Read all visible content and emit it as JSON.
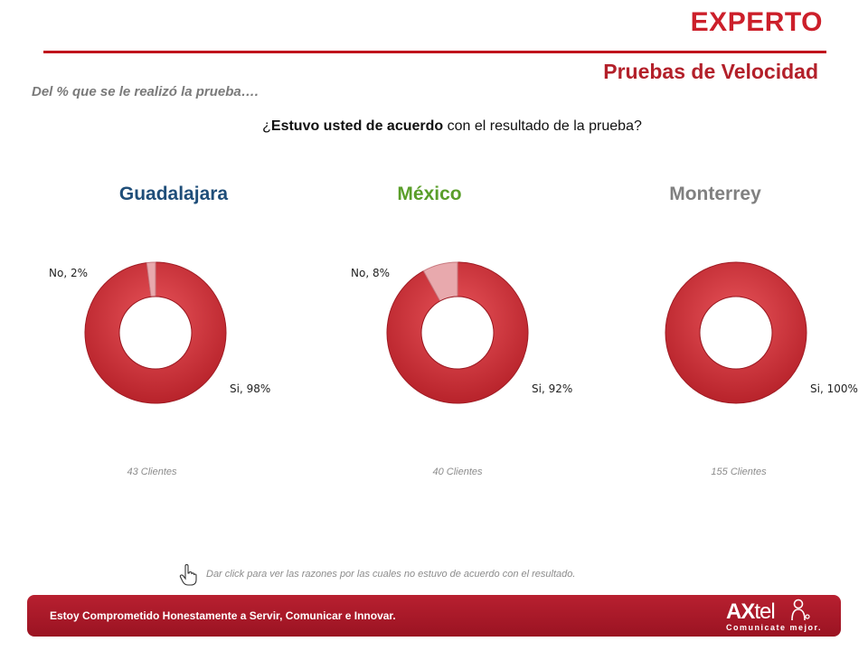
{
  "header": {
    "title": "EXPERTO",
    "subtitle": "Pruebas de Velocidad",
    "note": "Del % que se le realizó la prueba….",
    "question_prefix": "¿",
    "question_bold": "Estuvo usted de acuerdo",
    "question_rest": " con el resultado de la prueba?"
  },
  "colors": {
    "accent": "#c0141c",
    "slice_si": "#d9363e",
    "slice_no": "#e8a9ad",
    "guadalajara": "#1f4e79",
    "mexico": "#5a9e2a",
    "monterrey": "#808080"
  },
  "chart_data": [
    {
      "type": "pie",
      "title": "Guadalajara",
      "categories": [
        "Si",
        "No"
      ],
      "values": [
        98,
        2
      ],
      "labels": [
        "Si, 98%",
        "No, 2%"
      ],
      "clients": "43 Clientes"
    },
    {
      "type": "pie",
      "title": "México",
      "categories": [
        "Si",
        "No"
      ],
      "values": [
        92,
        8
      ],
      "labels": [
        "Si, 92%",
        "No, 8%"
      ],
      "clients": "40 Clientes"
    },
    {
      "type": "pie",
      "title": "Monterrey",
      "categories": [
        "Si"
      ],
      "values": [
        100
      ],
      "labels": [
        "Si, 100%"
      ],
      "clients": "155 Clientes"
    }
  ],
  "hint": "Dar click para ver las razones por las cuales no estuvo de acuerdo con el resultado.",
  "footer": {
    "slogan": "Estoy Comprometido Honestamente a Servir, Comunicar e Innovar.",
    "logo_ax": "AX",
    "logo_tel": "tel",
    "logo_tagline": "Comunicate mejor."
  }
}
